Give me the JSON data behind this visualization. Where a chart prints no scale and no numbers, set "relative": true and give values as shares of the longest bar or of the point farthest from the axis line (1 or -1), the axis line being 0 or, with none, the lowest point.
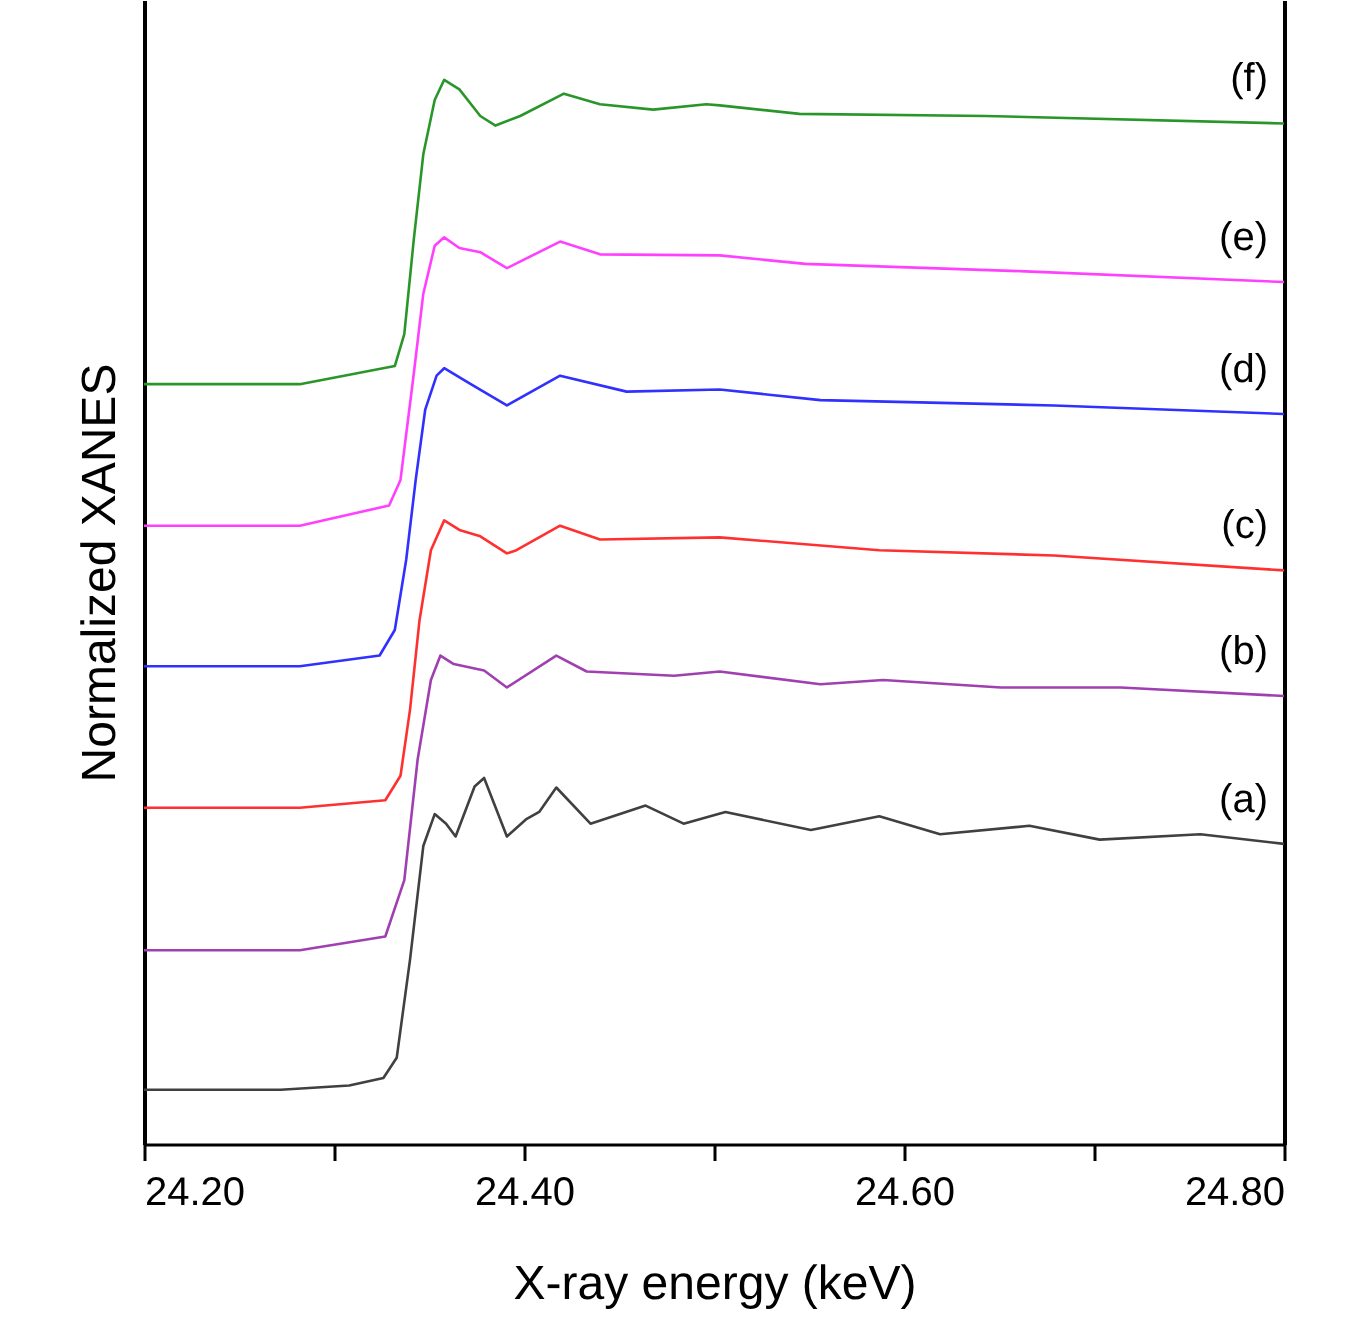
{
  "chart_data": {
    "type": "line",
    "xlabel": "X-ray energy (keV)",
    "ylabel": "Normalized XANES",
    "relative": true,
    "line_style": "solid",
    "xlim": [
      24.2,
      24.8
    ],
    "xticks": [
      {
        "value": 24.2,
        "label": "24.20"
      },
      {
        "value": 24.3,
        "label": null
      },
      {
        "value": 24.4,
        "label": "24.40"
      },
      {
        "value": 24.5,
        "label": null
      },
      {
        "value": 24.6,
        "label": "24.60"
      },
      {
        "value": 24.7,
        "label": null
      },
      {
        "value": 24.8,
        "label": "24.80"
      }
    ],
    "series": [
      {
        "name": "(a)",
        "color": "#404040",
        "x": [
          24.2,
          24.272,
          24.308,
          24.326,
          24.333,
          24.34,
          24.347,
          24.353,
          24.359,
          24.364,
          24.374,
          24.379,
          24.391,
          24.401,
          24.408,
          24.417,
          24.435,
          24.464,
          24.484,
          24.506,
          24.551,
          24.587,
          24.619,
          24.666,
          24.703,
          24.756,
          24.8
        ],
        "values": [
          0.051,
          0.051,
          0.055,
          0.062,
          0.081,
          0.173,
          0.28,
          0.31,
          0.301,
          0.289,
          0.336,
          0.344,
          0.289,
          0.305,
          0.312,
          0.335,
          0.301,
          0.318,
          0.301,
          0.312,
          0.295,
          0.308,
          0.291,
          0.299,
          0.286,
          0.291,
          0.282
        ]
      },
      {
        "name": "(b)",
        "color": "#a040b0",
        "x": [
          24.2,
          24.282,
          24.327,
          24.337,
          24.344,
          24.351,
          24.356,
          24.363,
          24.379,
          24.391,
          24.417,
          24.433,
          24.479,
          24.503,
          24.556,
          24.589,
          24.651,
          24.714,
          24.8
        ],
        "values": [
          0.182,
          0.182,
          0.195,
          0.248,
          0.361,
          0.436,
          0.459,
          0.451,
          0.445,
          0.429,
          0.459,
          0.444,
          0.44,
          0.444,
          0.432,
          0.436,
          0.429,
          0.429,
          0.421
        ]
      },
      {
        "name": "(c)",
        "color": "#ff3030",
        "x": [
          24.2,
          24.282,
          24.327,
          24.335,
          24.34,
          24.345,
          24.351,
          24.358,
          24.366,
          24.377,
          24.391,
          24.396,
          24.419,
          24.44,
          24.503,
          24.587,
          24.679,
          24.8
        ],
        "values": [
          0.316,
          0.316,
          0.323,
          0.346,
          0.408,
          0.492,
          0.558,
          0.586,
          0.577,
          0.571,
          0.555,
          0.558,
          0.581,
          0.568,
          0.57,
          0.558,
          0.553,
          0.539
        ]
      },
      {
        "name": "(d)",
        "color": "#3030ff",
        "x": [
          24.2,
          24.282,
          24.324,
          24.332,
          24.338,
          24.343,
          24.348,
          24.354,
          24.358,
          24.372,
          24.391,
          24.419,
          24.454,
          24.503,
          24.556,
          24.679,
          24.8
        ],
        "values": [
          0.449,
          0.449,
          0.459,
          0.483,
          0.549,
          0.624,
          0.69,
          0.722,
          0.729,
          0.714,
          0.694,
          0.722,
          0.707,
          0.709,
          0.699,
          0.694,
          0.686
        ]
      },
      {
        "name": "(e)",
        "color": "#ff40ff",
        "x": [
          24.2,
          24.282,
          24.329,
          24.335,
          24.342,
          24.347,
          24.353,
          24.358,
          24.366,
          24.377,
          24.391,
          24.419,
          24.44,
          24.503,
          24.548,
          24.664,
          24.8
        ],
        "values": [
          0.581,
          0.581,
          0.6,
          0.624,
          0.724,
          0.799,
          0.844,
          0.852,
          0.842,
          0.838,
          0.823,
          0.848,
          0.836,
          0.835,
          0.827,
          0.82,
          0.81
        ]
      },
      {
        "name": "(f)",
        "color": "#2a962a",
        "x": [
          24.2,
          24.282,
          24.332,
          24.337,
          24.342,
          24.347,
          24.353,
          24.358,
          24.366,
          24.377,
          24.385,
          24.398,
          24.421,
          24.44,
          24.468,
          24.496,
          24.503,
          24.545,
          24.643,
          24.8
        ],
        "values": [
          0.714,
          0.714,
          0.731,
          0.761,
          0.85,
          0.93,
          0.981,
          1.0,
          0.991,
          0.966,
          0.957,
          0.966,
          0.987,
          0.977,
          0.972,
          0.977,
          0.976,
          0.968,
          0.966,
          0.959
        ]
      }
    ]
  }
}
